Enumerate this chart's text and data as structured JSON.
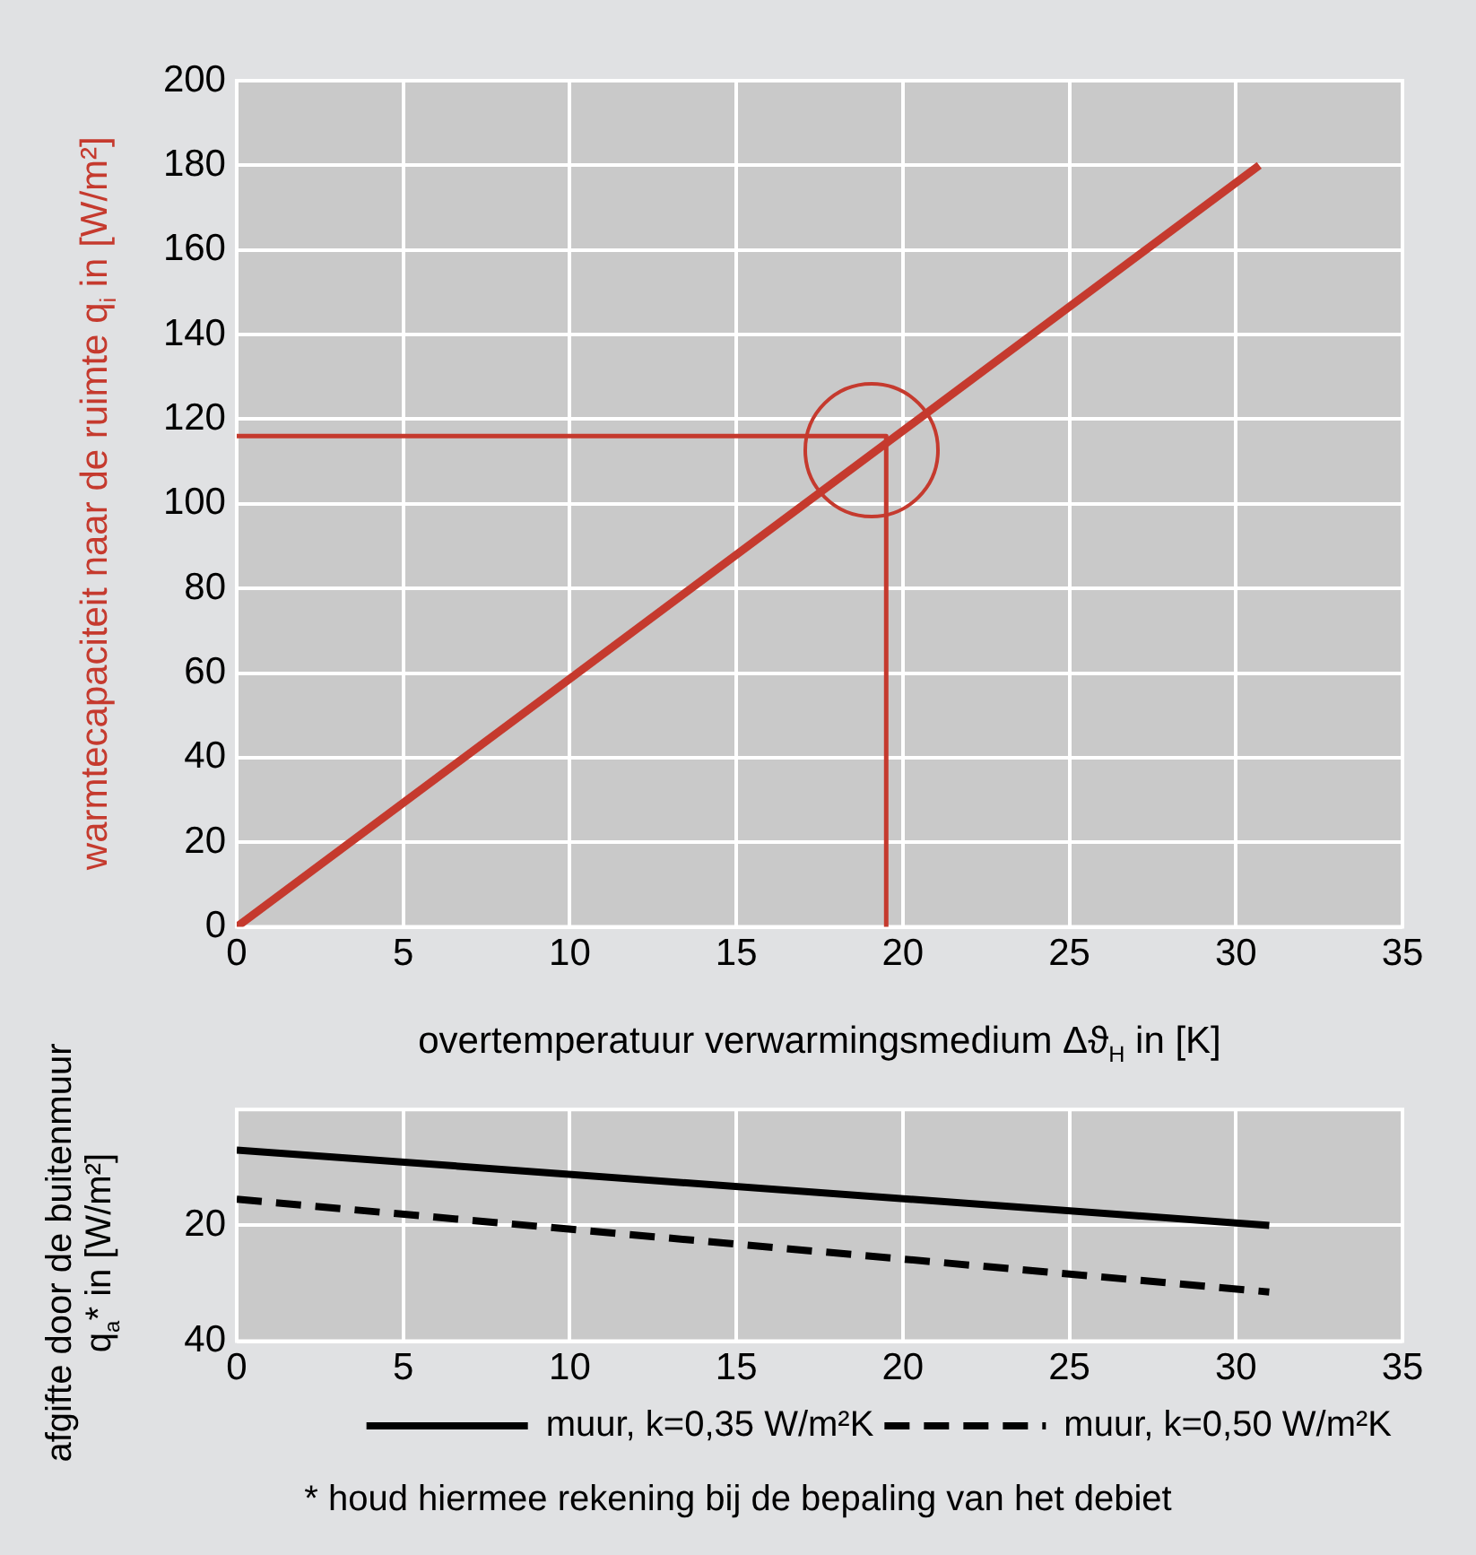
{
  "chart_data": [
    {
      "type": "line",
      "xlabel": "overtemperatuur verwarmingsmedium Δϑ$_{H}$ in [K]",
      "ylabel": "warmtecapaciteit naar de ruimte q$_{i}$ in [W/m²]",
      "series": [
        {
          "color": "#c53a2e",
          "x": [
            0,
            30.7
          ],
          "values": [
            0,
            180
          ]
        },
        {
          "color": "#c53a2e",
          "x": [
            0,
            19.5,
            19.5
          ],
          "values": [
            116,
            116,
            0
          ]
        }
      ],
      "xlim": [
        0,
        35
      ],
      "xticks": [
        0,
        5,
        10,
        15,
        20,
        25,
        30,
        35
      ],
      "ylim": [
        0,
        200
      ],
      "yticks": [
        0,
        20,
        40,
        60,
        80,
        100,
        120,
        140,
        160,
        180,
        200
      ],
      "grid": true,
      "legend": false,
      "marker": "none"
    },
    {
      "type": "line",
      "ylabel": "afgifte door de buitenmuur q$_{a}$* in [W/m²]",
      "series": [
        {
          "name": "muur, k=0,35 W/m²K",
          "color": "#000000",
          "line_style": "solid",
          "x": [
            0,
            31
          ],
          "values": [
            7,
            20
          ]
        },
        {
          "name": "muur, k=0,50 W/m²K",
          "color": "#000000",
          "line_style": "dashed",
          "x": [
            0,
            31
          ],
          "values": [
            15.5,
            31.5
          ]
        }
      ],
      "xlim": [
        0,
        35
      ],
      "xticks": [
        0,
        5,
        10,
        15,
        20,
        25,
        30,
        35
      ],
      "ylim": [
        40,
        0
      ],
      "yticks": [
        20,
        40
      ],
      "grid": true,
      "legend": "bottom right",
      "marker": "none",
      "annotations": [
        "* houd hiermee rekening bij de bepaling van het debiet"
      ]
    }
  ]
}
